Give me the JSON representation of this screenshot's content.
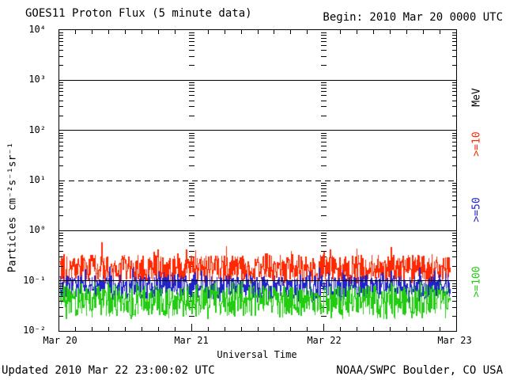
{
  "header": {
    "title": "GOES11 Proton Flux (5 minute data)",
    "begin_label": "Begin: 2010 Mar 20 0000 UTC"
  },
  "footer": {
    "updated": "Updated 2010 Mar 22 23:00:02 UTC",
    "source": "NOAA/SWPC Boulder, CO USA"
  },
  "chart_data": {
    "type": "line",
    "title": "GOES11 Proton Flux (5 minute data)",
    "subtitle": "Begin: 2010 Mar 20 0000 UTC",
    "xlabel": "Universal Time",
    "ylabel": "Particles cm⁻²s⁻¹sr⁻¹",
    "yscale": "log",
    "ylim": [
      0.01,
      10000
    ],
    "ytop_exponent": 4,
    "decades": 6,
    "ytick_labels": [
      "10⁴",
      "10³",
      "10²",
      "10¹",
      "10⁰",
      "10⁻¹",
      "10⁻²"
    ],
    "ytick_exponents": [
      4,
      3,
      2,
      1,
      0,
      -1,
      -2
    ],
    "solid_gridline_exponents": [
      3,
      2,
      0,
      -1
    ],
    "dashed_gridline_exponent": 1,
    "xtick_labels": [
      "Mar 20",
      "Mar 21",
      "Mar 22",
      "Mar 23"
    ],
    "x_days_total": 3,
    "minor_tick_hours": 3,
    "hours_per_day": 24,
    "sample_interval_minutes": 5,
    "data_hours_shown": 71,
    "grid_day_gridlines": [
      1,
      2
    ],
    "right_axis_unit": "MeV",
    "right_labels": [
      {
        "label": "MeV",
        "color": "#000000"
      },
      {
        "label": ">=10",
        "color": "#ff2800"
      },
      {
        "label": ">=50",
        "color": "#2222cc"
      },
      {
        "label": ">=100",
        "color": "#22cc11"
      }
    ],
    "series": [
      {
        "name": "Protons >=10 MeV",
        "threshold_mev": 10,
        "color": "#ff2800",
        "flux_mean": 0.18,
        "flux_typical_min": 0.1,
        "flux_typical_max": 0.33,
        "flux_peak": 0.6,
        "flux_dip": 0.085,
        "seed": 101
      },
      {
        "name": "Protons >=50 MeV",
        "threshold_mev": 50,
        "color": "#2222cc",
        "flux_mean": 0.085,
        "flux_typical_min": 0.045,
        "flux_typical_max": 0.13,
        "flux_peak": 0.19,
        "flux_dip": 0.038,
        "seed": 202
      },
      {
        "name": "Protons >=100 MeV",
        "threshold_mev": 100,
        "color": "#22cc11",
        "flux_mean": 0.045,
        "flux_typical_min": 0.021,
        "flux_typical_max": 0.08,
        "flux_peak": 0.1,
        "flux_dip": 0.018,
        "seed": 303
      }
    ]
  }
}
